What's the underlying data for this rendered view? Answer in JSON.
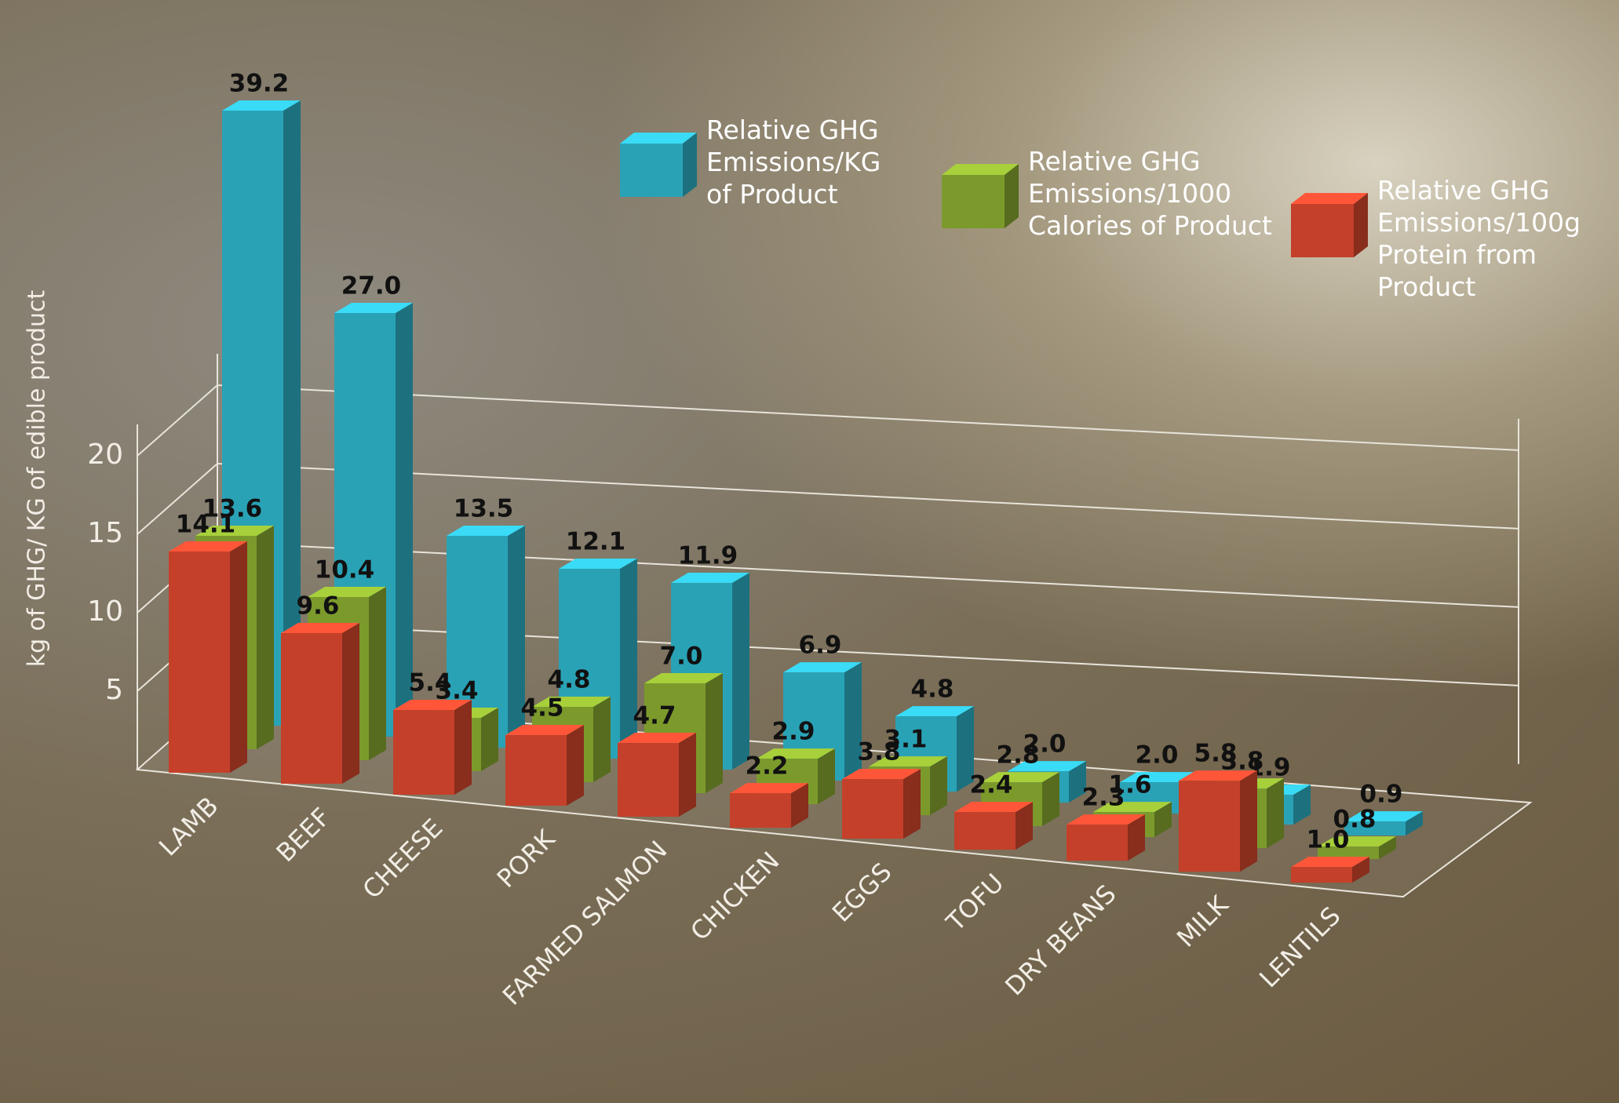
{
  "chart_data": {
    "type": "bar",
    "y_label": "kg of GHG/ KG of edible product",
    "categories": [
      "LAMB",
      "BEEF",
      "CHEESE",
      "PORK",
      "FARMED SALMON",
      "CHICKEN",
      "EGGS",
      "TOFU",
      "DRY BEANS",
      "MILK",
      "LENTILS"
    ],
    "series": [
      {
        "name": "Relative GHG Emissions/KG of Product",
        "color": "#2aa2b6",
        "values": [
          39.2,
          27,
          13.5,
          12.1,
          11.9,
          6.9,
          4.8,
          2,
          2,
          1.9,
          0.9
        ],
        "value_labels": [
          "39.2",
          "27.0",
          "13.5",
          "12.1",
          "11.9",
          "6.9",
          "4.8",
          "2.0",
          "2.0",
          "1.9",
          "0.9"
        ]
      },
      {
        "name": "Relative GHG Emissions/1000 Calories of Product",
        "color": "#7c9a2c",
        "values": [
          13.6,
          10.4,
          3.4,
          4.8,
          7,
          2.9,
          3.1,
          2.8,
          1.6,
          3.8,
          0.8
        ],
        "value_labels": [
          "13.6",
          "10.4",
          "3.4",
          "4.8",
          "7.0",
          "2.9",
          "3.1",
          "2.8",
          "1.6",
          "3.8",
          "0.8"
        ]
      },
      {
        "name": "Relative GHG Emissions/100g Protein from Product",
        "color": "#c4402a",
        "values": [
          14.1,
          9.6,
          5.4,
          4.5,
          4.7,
          2.2,
          3.8,
          2.4,
          2.3,
          5.8,
          1
        ],
        "value_labels": [
          "14.1",
          "9.6",
          "5.4",
          "4.5",
          "4.7",
          "2.2",
          "3.8",
          "2.4",
          "2.3",
          "5.8",
          "1.0"
        ]
      }
    ],
    "ylim": [
      0,
      22
    ],
    "yticks": [
      5,
      10,
      15,
      20
    ],
    "grid": true
  }
}
